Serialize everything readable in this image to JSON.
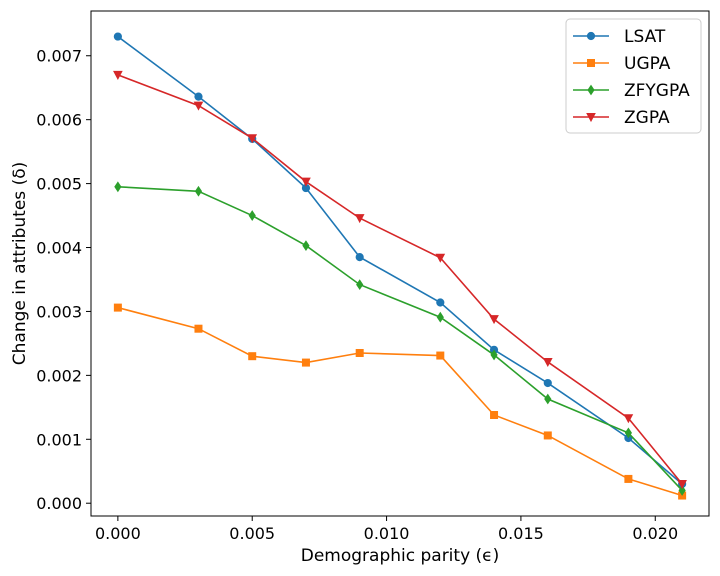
{
  "chart_data": {
    "type": "line",
    "xlabel": "Demographic parity (ϵ)",
    "ylabel": "Change in attributes (δ)",
    "xlim": [
      -0.001,
      0.022
    ],
    "ylim": [
      -0.0002,
      0.0077
    ],
    "x_ticks": [
      0.0,
      0.005,
      0.01,
      0.015,
      0.02
    ],
    "x_tick_labels": [
      "0.000",
      "0.005",
      "0.010",
      "0.015",
      "0.020"
    ],
    "y_ticks": [
      0.0,
      0.001,
      0.002,
      0.003,
      0.004,
      0.005,
      0.006,
      0.007
    ],
    "y_tick_labels": [
      "0.000",
      "0.001",
      "0.002",
      "0.003",
      "0.004",
      "0.005",
      "0.006",
      "0.007"
    ],
    "grid": false,
    "legend_position": "top-right",
    "x": [
      0.0,
      0.003,
      0.005,
      0.007,
      0.009,
      0.012,
      0.014,
      0.016,
      0.019,
      0.021
    ],
    "series": [
      {
        "name": "LSAT",
        "color": "#1f77b4",
        "marker": "circle",
        "values": [
          0.0073,
          0.00636,
          0.0057,
          0.00493,
          0.00385,
          0.00314,
          0.0024,
          0.00188,
          0.00102,
          0.0003
        ]
      },
      {
        "name": "UGPA",
        "color": "#ff7f0e",
        "marker": "square",
        "values": [
          0.00306,
          0.00273,
          0.0023,
          0.0022,
          0.00235,
          0.00231,
          0.00138,
          0.00106,
          0.00038,
          0.00012
        ]
      },
      {
        "name": "ZFYGPA",
        "color": "#2ca02c",
        "marker": "diamond",
        "values": [
          0.00495,
          0.00488,
          0.0045,
          0.00403,
          0.00342,
          0.00291,
          0.00232,
          0.00163,
          0.0011,
          0.0002
        ]
      },
      {
        "name": "ZGPA",
        "color": "#d62728",
        "marker": "triangle-down",
        "values": [
          0.0067,
          0.00622,
          0.00571,
          0.00503,
          0.00446,
          0.00384,
          0.00288,
          0.00221,
          0.00133,
          0.0003
        ]
      }
    ]
  }
}
